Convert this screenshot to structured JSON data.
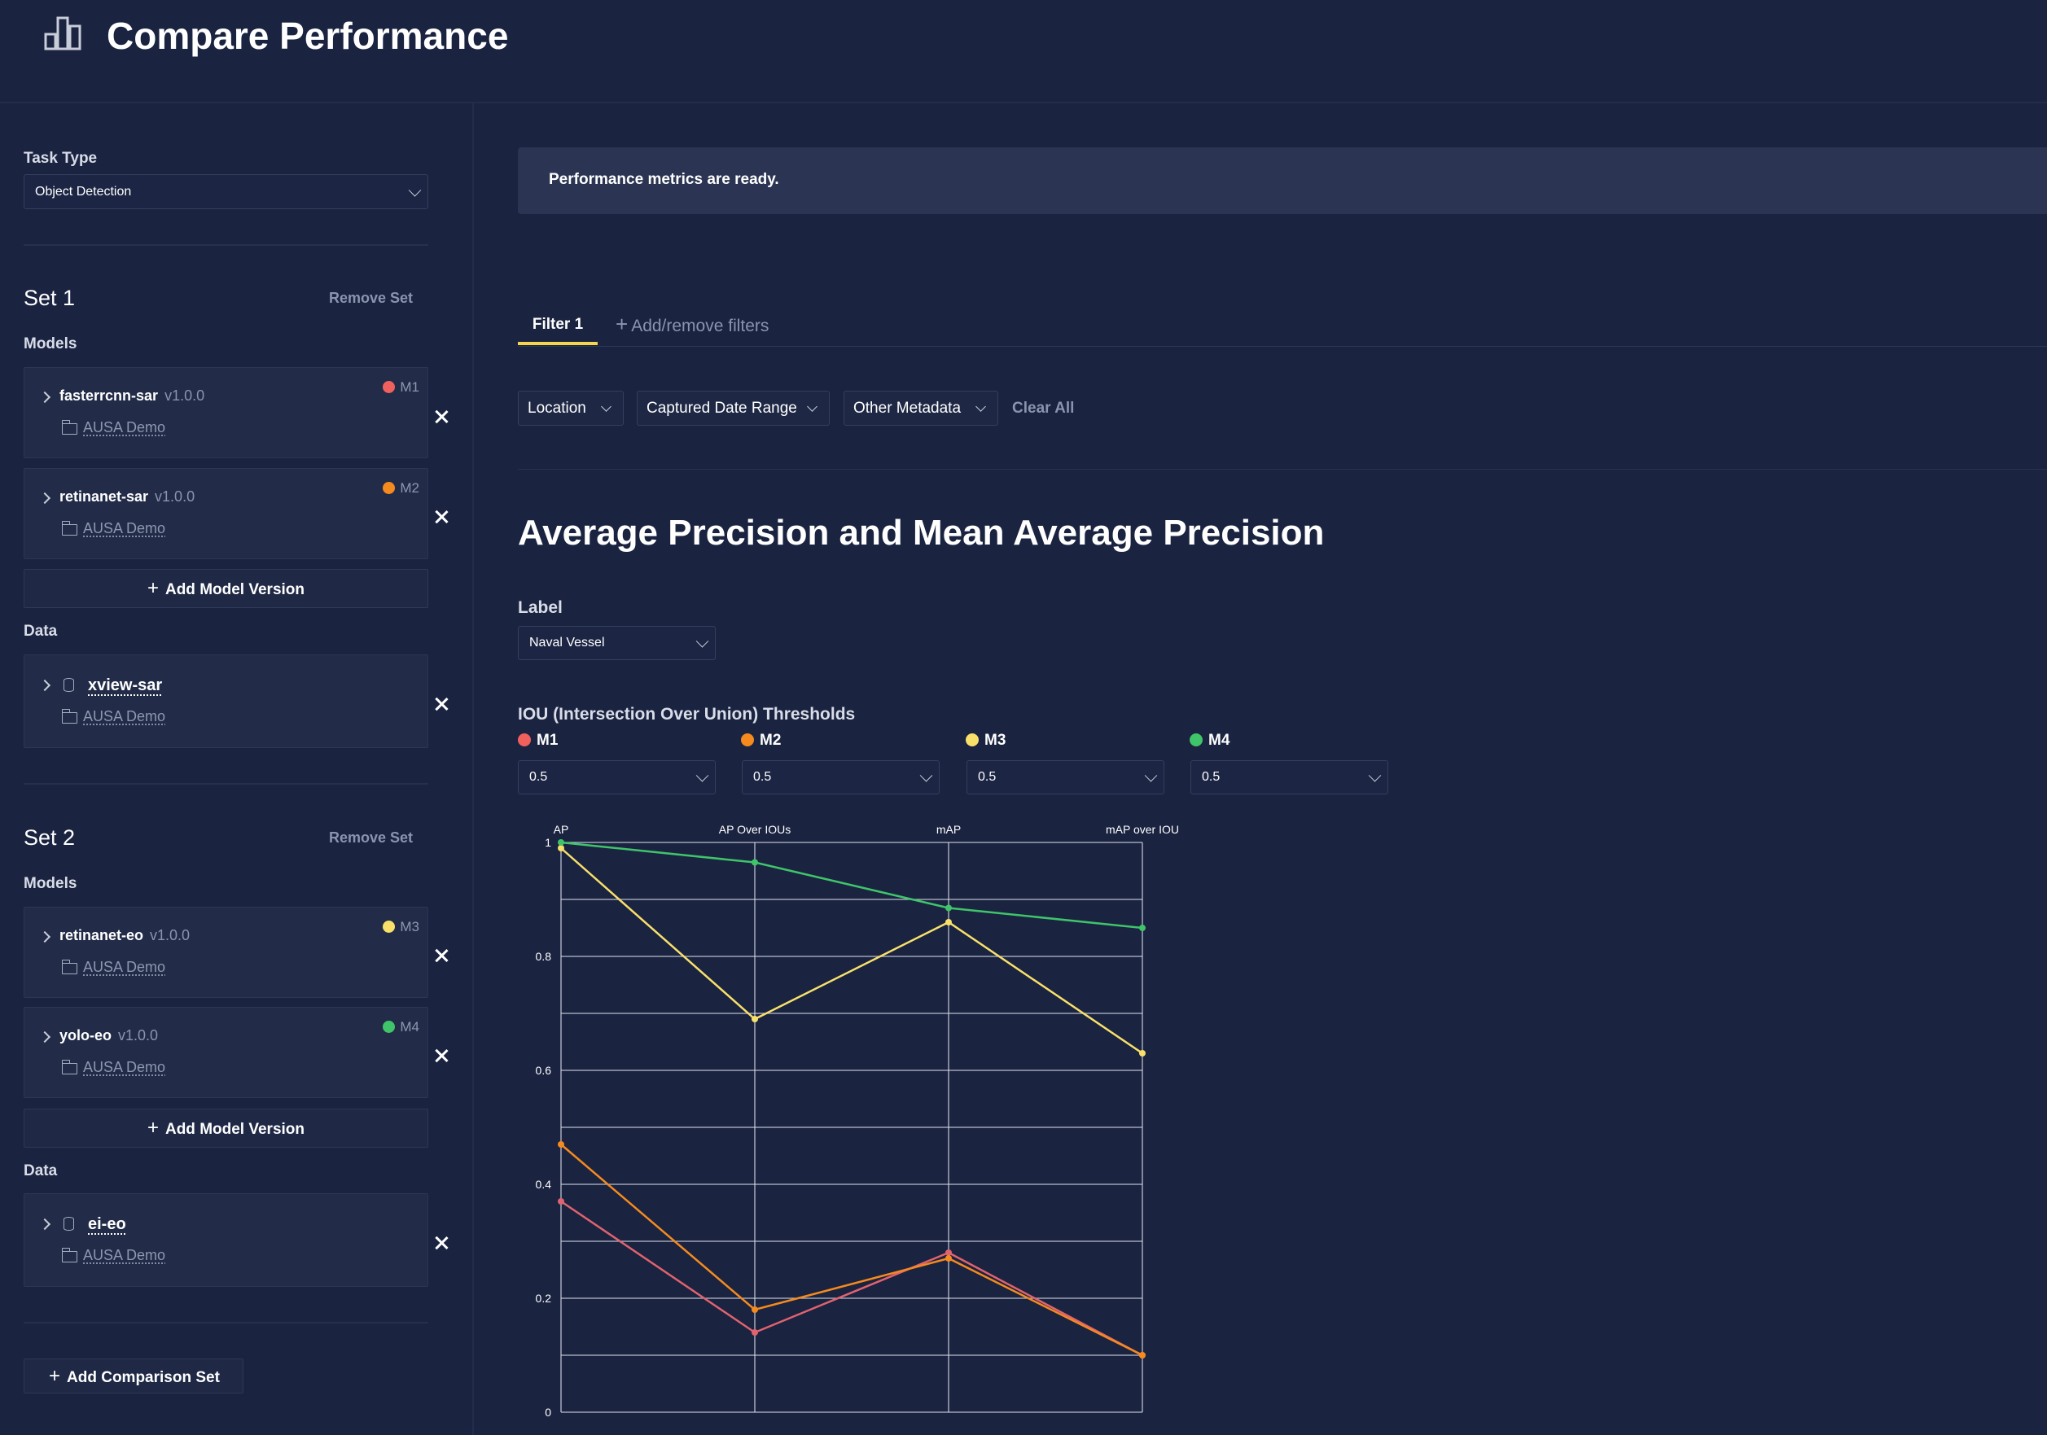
{
  "header": {
    "title": "Compare Performance",
    "icon": "bar-chart-icon"
  },
  "sidebar": {
    "task_type_label": "Task Type",
    "task_type_value": "Object Detection",
    "sets": [
      {
        "title": "Set 1",
        "remove_label": "Remove Set",
        "models_label": "Models",
        "models": [
          {
            "name": "fasterrcnn-sar",
            "version": "v1.0.0",
            "project": "AUSA Demo",
            "tag": "M1",
            "color": "#f0615e"
          },
          {
            "name": "retinanet-sar",
            "version": "v1.0.0",
            "project": "AUSA Demo",
            "tag": "M2",
            "color": "#f58a1f"
          }
        ],
        "add_model_label": "Add Model Version",
        "data_label": "Data",
        "data": {
          "name": "xview-sar",
          "project": "AUSA Demo"
        }
      },
      {
        "title": "Set 2",
        "remove_label": "Remove Set",
        "models_label": "Models",
        "models": [
          {
            "name": "retinanet-eo",
            "version": "v1.0.0",
            "project": "AUSA Demo",
            "tag": "M3",
            "color": "#f8e06a"
          },
          {
            "name": "yolo-eo",
            "version": "v1.0.0",
            "project": "AUSA Demo",
            "tag": "M4",
            "color": "#3fc46a"
          }
        ],
        "add_model_label": "Add Model Version",
        "data_label": "Data",
        "data": {
          "name": "ei-eo",
          "project": "AUSA Demo"
        }
      }
    ],
    "add_comparison_label": "Add Comparison Set"
  },
  "main": {
    "banner": "Performance metrics are ready.",
    "tabs": {
      "active": "Filter 1",
      "add": "Add/remove filters"
    },
    "filters": [
      "Location",
      "Captured Date Range",
      "Other Metadata"
    ],
    "clear_all": "Clear All",
    "section_title": "Average Precision and Mean Average Precision",
    "label_label": "Label",
    "label_value": "Naval Vessel",
    "iou_title": "IOU (Intersection Over Union) Thresholds",
    "iou": [
      {
        "model": "M1",
        "value": "0.5",
        "color": "#f0615e"
      },
      {
        "model": "M2",
        "value": "0.5",
        "color": "#f58a1f"
      },
      {
        "model": "M3",
        "value": "0.5",
        "color": "#f8e06a"
      },
      {
        "model": "M4",
        "value": "0.5",
        "color": "#3fc46a"
      }
    ]
  },
  "chart_data": {
    "type": "line",
    "categories": [
      "AP",
      "AP Over IOUs",
      "mAP",
      "mAP over IOU"
    ],
    "ylim": [
      0,
      1
    ],
    "yticks": [
      "1",
      "0.8",
      "0.6",
      "0.4",
      "0.2",
      "0"
    ],
    "grid": true,
    "series": [
      {
        "name": "M1",
        "color": "#e0636f",
        "values": [
          0.37,
          0.14,
          0.28,
          0.1
        ]
      },
      {
        "name": "M2",
        "color": "#f58a1f",
        "values": [
          0.47,
          0.18,
          0.27,
          0.1
        ]
      },
      {
        "name": "M3",
        "color": "#f8e06a",
        "values": [
          0.99,
          0.69,
          0.86,
          0.63
        ]
      },
      {
        "name": "M4",
        "color": "#3fc46a",
        "values": [
          1.0,
          0.965,
          0.885,
          0.85
        ]
      }
    ]
  }
}
